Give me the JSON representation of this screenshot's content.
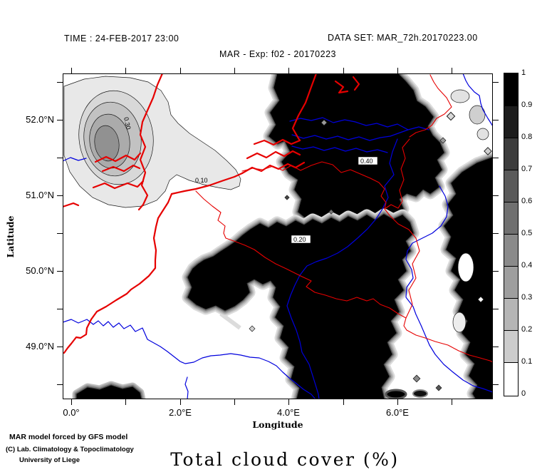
{
  "header": {
    "time_label": "TIME : 24-FEB-2017 23:00",
    "dataset_label": "DATA SET: MAR_72h.20170223.00",
    "experiment_label": "MAR - Exp: f02 - 20170223"
  },
  "map": {
    "x_axis": {
      "label": "Longitude",
      "major_ticks": [
        {
          "label": "0.0°",
          "deg": 0
        },
        {
          "label": "2.0°E",
          "deg": 2
        },
        {
          "label": "4.0°E",
          "deg": 4
        },
        {
          "label": "6.0°E",
          "deg": 6
        }
      ],
      "minor_tick_degs": [
        0,
        1,
        2,
        3,
        4,
        5,
        6,
        7
      ]
    },
    "y_axis": {
      "label": "Latitude",
      "major_ticks": [
        {
          "label": "52.0°N",
          "lat": 52
        },
        {
          "label": "51.0°N",
          "lat": 51
        },
        {
          "label": "50.0°N",
          "lat": 50
        },
        {
          "label": "49.0°N",
          "lat": 49
        }
      ],
      "minor_tick_lats": [
        52.5,
        52,
        51.5,
        51,
        50.5,
        50,
        49.5,
        49,
        48.5
      ]
    },
    "contour_labels": [
      {
        "text": "0.30"
      },
      {
        "text": "0.10"
      },
      {
        "text": "0.40"
      },
      {
        "text": "0.20"
      }
    ]
  },
  "colorbar": {
    "tick_labels_top_to_bottom": [
      "1",
      "0.9",
      "0.8",
      "0.7",
      "0.6",
      "0.5",
      "0.4",
      "0.3",
      "0.2",
      "0.1",
      "0"
    ],
    "segment_colors_top_to_bottom": [
      "#000000",
      "#1c1c1c",
      "#3c3c3c",
      "#5a5a5a",
      "#707070",
      "#8a8a8a",
      "#9e9e9e",
      "#b5b5b5",
      "#cccccc",
      "#ffffff"
    ]
  },
  "credits": {
    "line1": "MAR model forced by GFS model",
    "line2": "(C) Lab. Climatology & Topoclimatology",
    "line3": "University of Liege"
  },
  "title": "Total cloud cover (%)",
  "colors": {
    "border_red": "#e60000",
    "river_blue": "#0000dd",
    "credit_red": "#d40000",
    "gray_shades": [
      "#e8e8e8",
      "#d8d8d8",
      "#c2c2c2",
      "#ababab",
      "#919191"
    ]
  }
}
